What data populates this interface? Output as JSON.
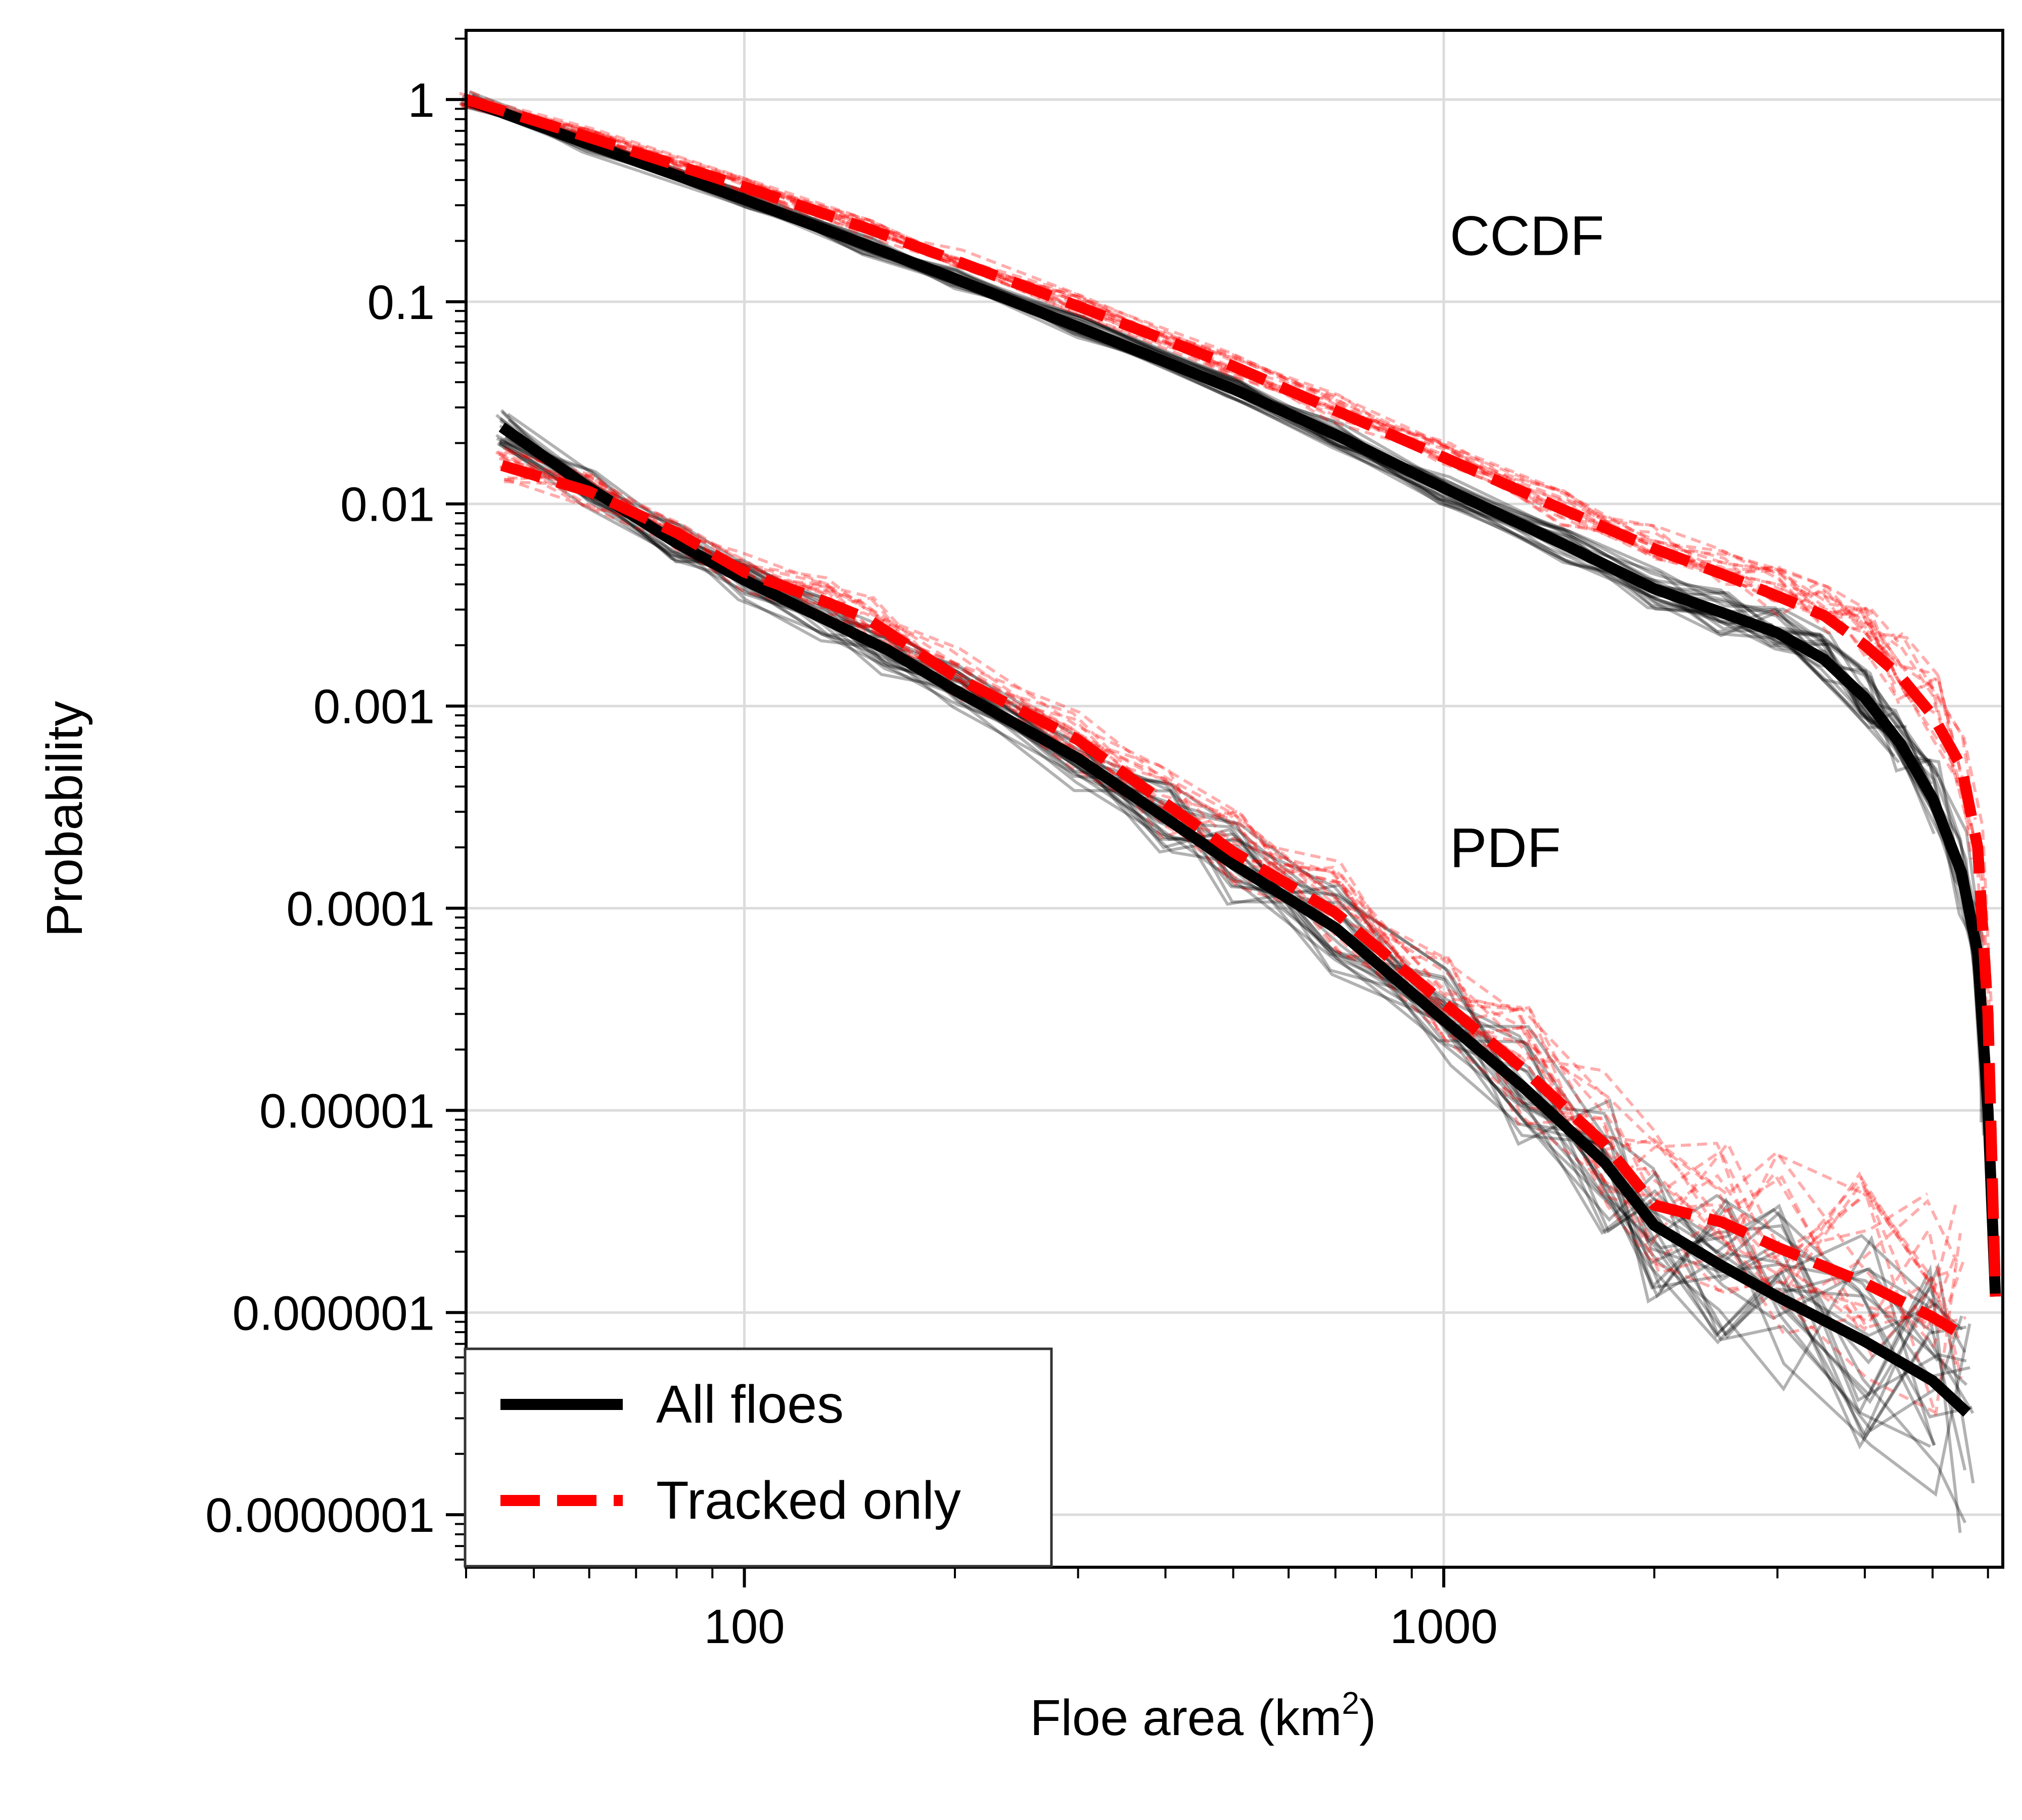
{
  "chart_data": {
    "type": "line",
    "xscale": "log",
    "yscale": "log",
    "xlim": [
      40,
      6300
    ],
    "ylim": [
      5.5e-08,
      2.2
    ],
    "xlabel": "Floe area (km",
    "xlabel_sup": "2",
    "xlabel_close": ")",
    "ylabel": "Probability",
    "x_ticks": [
      {
        "value": 100,
        "label": "100"
      },
      {
        "value": 1000,
        "label": "1000"
      }
    ],
    "y_ticks": [
      {
        "value": 1,
        "label": "1"
      },
      {
        "value": 0.1,
        "label": "0.1"
      },
      {
        "value": 0.01,
        "label": "0.01"
      },
      {
        "value": 0.001,
        "label": "0.001"
      },
      {
        "value": 0.0001,
        "label": "0.0001"
      },
      {
        "value": 1e-05,
        "label": "0.00001"
      },
      {
        "value": 1e-06,
        "label": "0.000001"
      },
      {
        "value": 1e-07,
        "label": "0.0000001"
      }
    ],
    "grid": true,
    "legend_position": "bottom-left",
    "annotations": [
      {
        "text": "CCDF",
        "x": 1020,
        "y": 0.17
      },
      {
        "text": "PDF",
        "x": 1020,
        "y": 0.00016
      }
    ],
    "series": [
      {
        "name": "All floes",
        "curve": "CCDF",
        "color": "#000000",
        "style": "solid",
        "x": [
          40,
          60,
          100,
          150,
          200,
          300,
          500,
          700,
          1000,
          1500,
          2000,
          2500,
          3000,
          3500,
          4000,
          4500,
          5000,
          5500,
          5800,
          6000,
          6150
        ],
        "y": [
          1,
          0.6,
          0.32,
          0.19,
          0.13,
          0.075,
          0.037,
          0.022,
          0.012,
          0.0062,
          0.0038,
          0.0029,
          0.0023,
          0.0017,
          0.0011,
          0.00065,
          0.00035,
          0.00015,
          6e-05,
          1e-05,
          1.2e-06
        ]
      },
      {
        "name": "Tracked only",
        "curve": "CCDF",
        "color": "#ff0000",
        "style": "dashed",
        "x": [
          40,
          60,
          100,
          150,
          200,
          300,
          500,
          700,
          1000,
          1500,
          2000,
          2500,
          3000,
          3500,
          4000,
          4500,
          5000,
          5500,
          5800,
          6000,
          6150
        ],
        "y": [
          1,
          0.65,
          0.37,
          0.23,
          0.16,
          0.095,
          0.048,
          0.029,
          0.017,
          0.0092,
          0.006,
          0.0045,
          0.0035,
          0.0028,
          0.002,
          0.0014,
          0.0009,
          0.0005,
          0.0002,
          3e-05,
          1.2e-06
        ]
      },
      {
        "name": "All floes",
        "curve": "PDF",
        "color": "#000000",
        "style": "solid",
        "x": [
          45,
          60,
          80,
          100,
          130,
          160,
          200,
          300,
          400,
          500,
          700,
          1000,
          1300,
          1700,
          2000,
          2500,
          3000,
          4000,
          5000,
          5600
        ],
        "y": [
          0.024,
          0.012,
          0.0064,
          0.0042,
          0.0027,
          0.0019,
          0.0012,
          0.00055,
          0.00028,
          0.000165,
          8e-05,
          2.8e-05,
          1.3e-05,
          5.5e-06,
          2.7e-06,
          1.7e-06,
          1.2e-06,
          7.2e-07,
          4.6e-07,
          3.2e-07
        ]
      },
      {
        "name": "Tracked only",
        "curve": "PDF",
        "color": "#ff0000",
        "style": "dashed",
        "x": [
          45,
          60,
          80,
          100,
          130,
          150,
          200,
          300,
          400,
          500,
          700,
          1000,
          1300,
          1700,
          2000,
          2500,
          3000,
          4000,
          5000,
          5500
        ],
        "y": [
          0.0155,
          0.0115,
          0.0072,
          0.0046,
          0.0033,
          0.0027,
          0.0014,
          0.00068,
          0.00033,
          0.00019,
          9.5e-05,
          3.4e-05,
          1.6e-05,
          6.8e-06,
          3.4e-06,
          2.8e-06,
          2.1e-06,
          1.4e-06,
          9.5e-07,
          7.8e-07
        ]
      }
    ],
    "note": "Each thick curve is accompanied by many thin translucent per-sample curves of the same color."
  }
}
